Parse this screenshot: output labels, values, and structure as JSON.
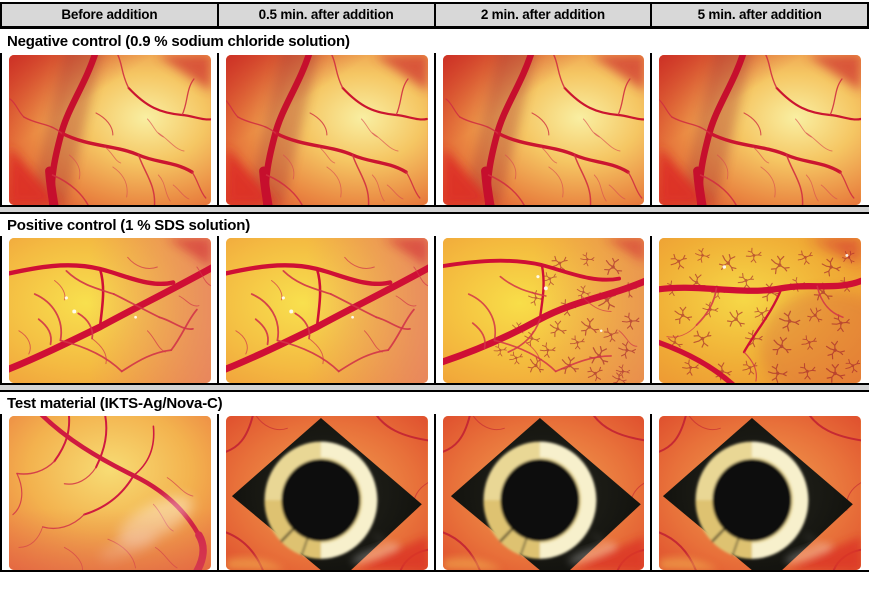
{
  "figure": {
    "header": {
      "columns": [
        "Before addition",
        "0.5 min. after addition",
        "2 min. after addition",
        "5 min. after addition"
      ]
    },
    "sections": [
      {
        "label": "Negative control (0.9 % sodium chloride solution)",
        "panels": [
          {
            "variant": "cam-intact",
            "desc": "CAM membrane, intact vessels"
          },
          {
            "variant": "cam-intact",
            "desc": "CAM membrane, intact vessels"
          },
          {
            "variant": "cam-intact",
            "desc": "CAM membrane, intact vessels"
          },
          {
            "variant": "cam-intact",
            "desc": "CAM membrane, intact vessels"
          }
        ]
      },
      {
        "label": "Positive control (1 % SDS solution)",
        "panels": [
          {
            "variant": "cam-vessels",
            "desc": "CAM with large vessel, before SDS"
          },
          {
            "variant": "cam-vessels",
            "desc": "CAM with large vessel, 0.5 min after SDS"
          },
          {
            "variant": "cam-hemorrhage-onset",
            "desc": "CAM with beginning haemorrhage, 2 min after SDS"
          },
          {
            "variant": "cam-hemorrhage-strong",
            "desc": "CAM with strong haemorrhage, 5 min after SDS"
          }
        ]
      },
      {
        "label": "Test material (IKTS-Ag/Nova-C)",
        "panels": [
          {
            "variant": "cam-branching",
            "desc": "CAM membrane before sample placement"
          },
          {
            "variant": "sample-on-cam",
            "desc": "Black square sample with ring on CAM"
          },
          {
            "variant": "sample-on-cam",
            "desc": "Black square sample with ring on CAM"
          },
          {
            "variant": "sample-on-cam",
            "desc": "Black square sample with ring on CAM"
          }
        ]
      }
    ],
    "colors": {
      "header_bg": "#d8d8d8",
      "divider_bg": "#d3d3d3",
      "border": "#000000",
      "vessel_red": "#cf1030",
      "membrane_yellow": "#f5c763",
      "sample_black": "#0e0e0a",
      "ring_cream": "#ecdfa6"
    }
  }
}
